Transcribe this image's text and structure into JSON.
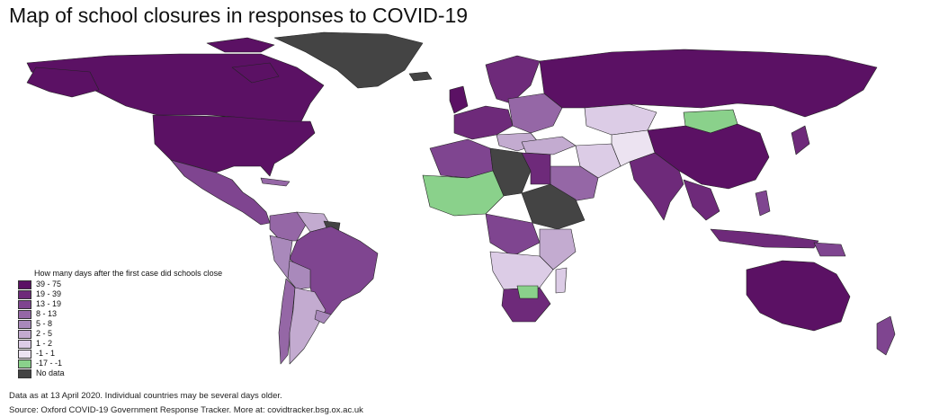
{
  "title": "Map of school closures in responses to COVID-19",
  "legend": {
    "title": "How many days after the first case did schools close",
    "items": [
      {
        "label": "39 - 75",
        "color": "#5b1164"
      },
      {
        "label": "19 - 39",
        "color": "#6e2a7a"
      },
      {
        "label": "13 - 19",
        "color": "#7f4590"
      },
      {
        "label": "8 - 13",
        "color": "#9567a6"
      },
      {
        "label": "5 - 8",
        "color": "#a989bb"
      },
      {
        "label": "2 - 5",
        "color": "#c3abd0"
      },
      {
        "label": "1 - 2",
        "color": "#dccce6"
      },
      {
        "label": "-1 - 1",
        "color": "#ece3f1"
      },
      {
        "label": "-17 - -1",
        "color": "#8ad18b"
      },
      {
        "label": "No data",
        "color": "#444444"
      }
    ]
  },
  "footnotes": {
    "data_note": "Data as at 13 April 2020. Individual countries may be several days older.",
    "source": "Source: Oxford COVID-19 Government Response Tracker. More at: covidtracker.bsg.ox.ac.uk"
  }
}
